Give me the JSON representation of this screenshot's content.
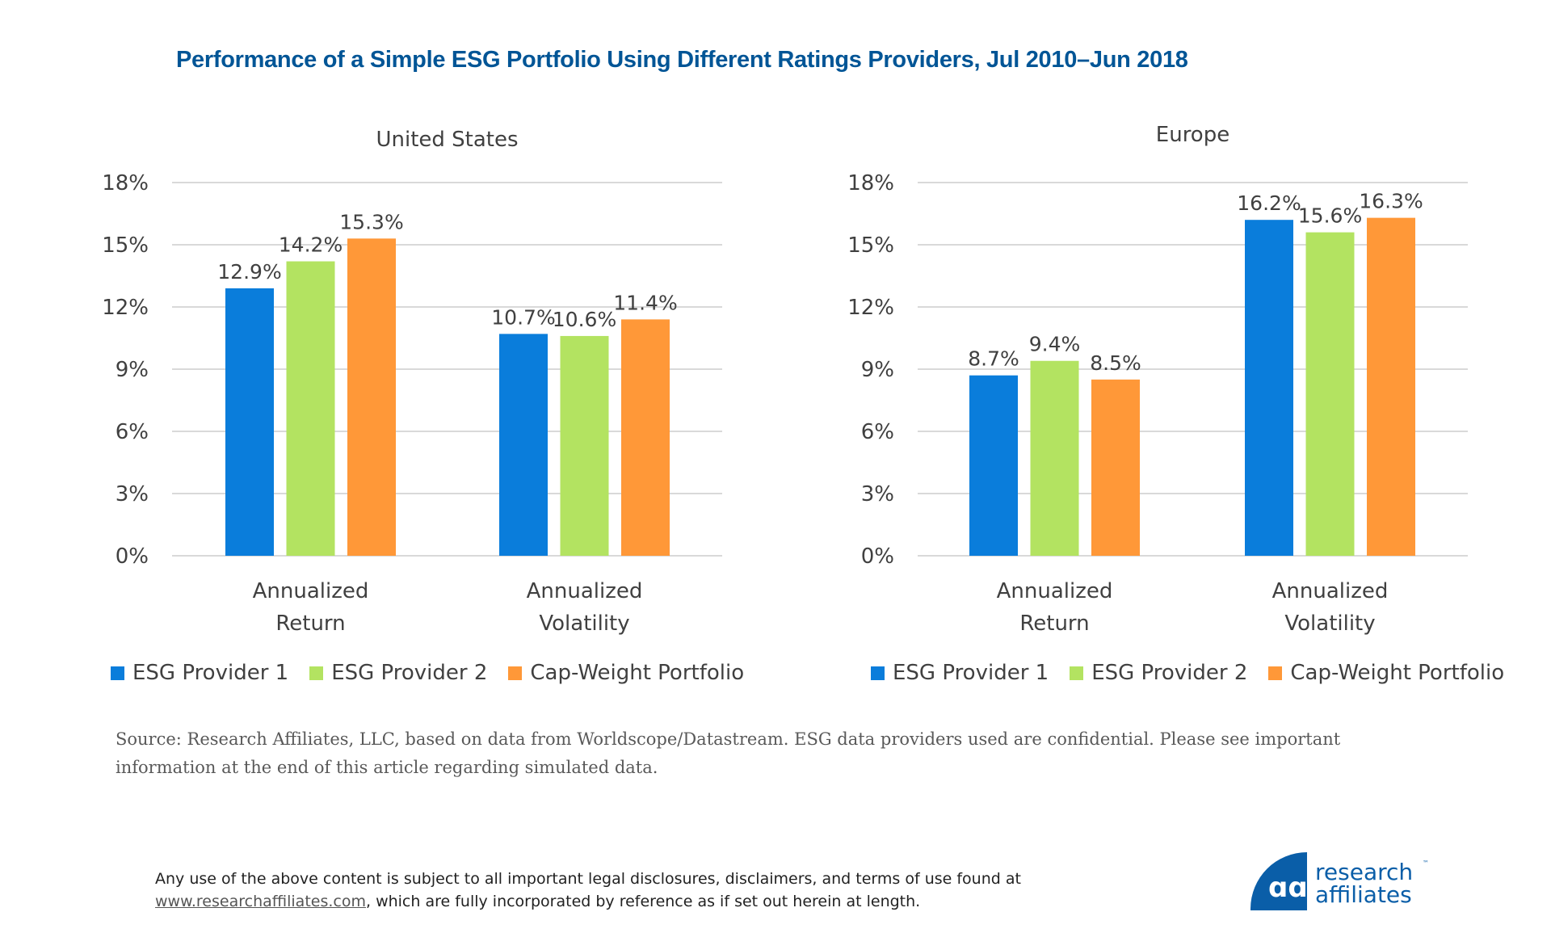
{
  "title": "Performance of a Simple ESG Portfolio Using Different Ratings Providers, Jul 2010–Jun 2018",
  "colors": {
    "title": "#005596",
    "ESG Provider 1": "#0a7ddb",
    "ESG Provider 2": "#b3e361",
    "Cap-Weight Portfolio": "#ff9838"
  },
  "chart_data": [
    {
      "type": "bar",
      "title": "United States",
      "categories": [
        [
          "Annualized",
          "Return"
        ],
        [
          "Annualized",
          "Volatility"
        ]
      ],
      "series": [
        {
          "name": "ESG Provider 1",
          "values": [
            12.9,
            10.7
          ]
        },
        {
          "name": "ESG Provider 2",
          "values": [
            14.2,
            10.6
          ]
        },
        {
          "name": "Cap-Weight Portfolio",
          "values": [
            15.3,
            11.4
          ]
        }
      ],
      "ylim": [
        0,
        18
      ],
      "yticks": [
        "0%",
        "3%",
        "6%",
        "9%",
        "12%",
        "15%",
        "18%"
      ],
      "grid": true,
      "legend": "bottom"
    },
    {
      "type": "bar",
      "title": "Europe",
      "categories": [
        [
          "Annualized",
          "Return"
        ],
        [
          "Annualized",
          "Volatility"
        ]
      ],
      "series": [
        {
          "name": "ESG Provider 1",
          "values": [
            8.7,
            16.2
          ]
        },
        {
          "name": "ESG Provider 2",
          "values": [
            9.4,
            15.6
          ]
        },
        {
          "name": "Cap-Weight Portfolio",
          "values": [
            8.5,
            16.3
          ]
        }
      ],
      "ylim": [
        0,
        18
      ],
      "yticks": [
        "0%",
        "3%",
        "6%",
        "9%",
        "12%",
        "15%",
        "18%"
      ],
      "grid": true,
      "legend": "bottom"
    }
  ],
  "source": "Source: Research Affiliates, LLC, based on data from Worldscope/Datastream. ESG data providers used are confidential. Please see important information at the end of this article regarding simulated data.",
  "footer": {
    "line1": "Any use of the above content is subject to all important legal disclosures, disclaimers, and terms of use found at",
    "link": "www.researchaffiliates.com",
    "line2_rest": ", which are fully incorporated by reference as if set out herein at length."
  },
  "logo": {
    "line1": "research",
    "line2": "affiliates",
    "tm": "™"
  }
}
